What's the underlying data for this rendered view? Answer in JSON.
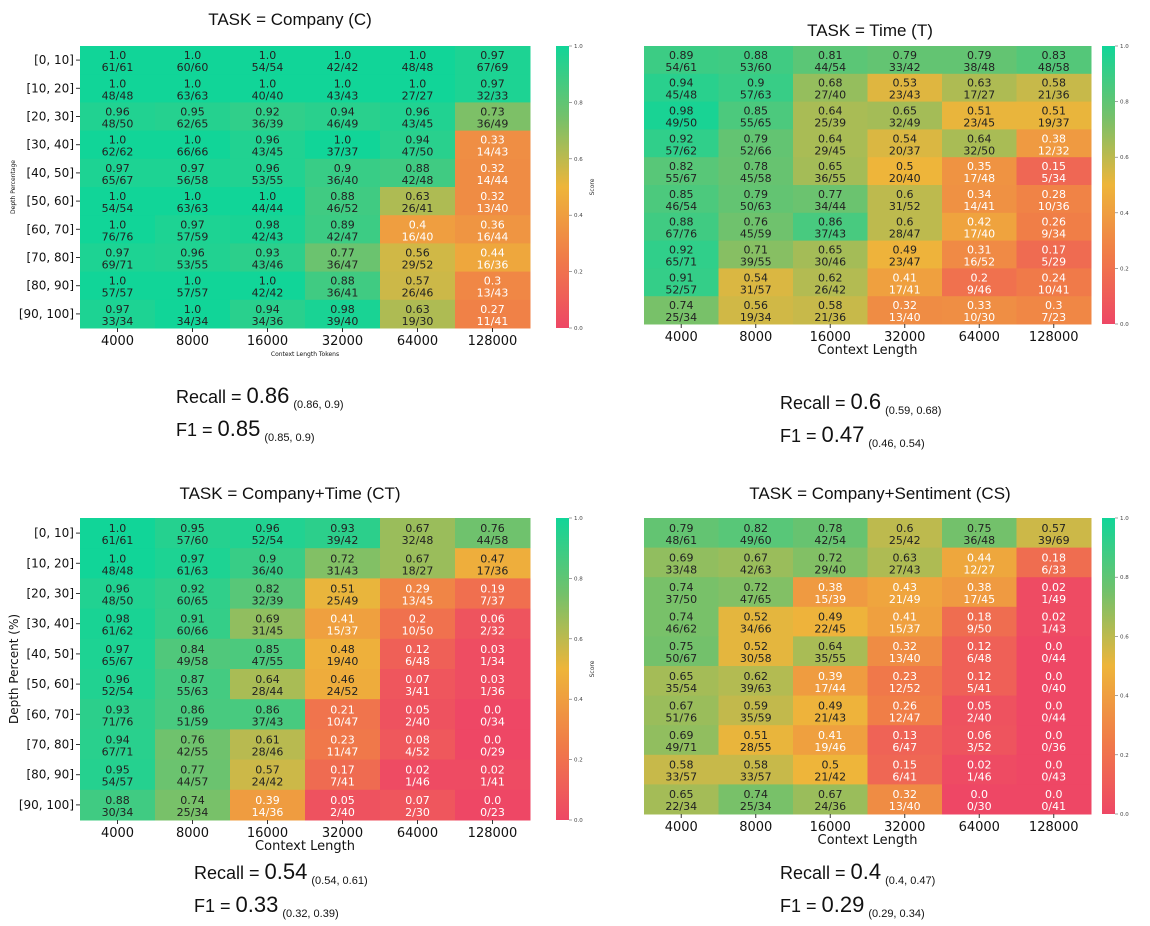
{
  "figure_title": "",
  "colorscale": {
    "stops": [
      [
        0.0,
        "#ee4765"
      ],
      [
        0.25,
        "#f07c48"
      ],
      [
        0.5,
        "#eeb53a"
      ],
      [
        0.75,
        "#73c16b"
      ],
      [
        1.0,
        "#11d598"
      ]
    ],
    "ticks": [
      "0.0",
      "0.2",
      "0.4",
      "0.6",
      "0.8",
      "1.0"
    ]
  },
  "chart_data": [
    {
      "type": "heatmap",
      "title": "TASK = Company (C)",
      "xlabel": "Context Length Tokens",
      "ylabel": "Depth Percentage",
      "colorbar_label": "Score",
      "x_ticks": [
        "4000",
        "8000",
        "16000",
        "32000",
        "64000",
        "128000"
      ],
      "y_ticks": [
        "[0, 10]",
        "[10, 20]",
        "[20, 30]",
        "[30, 40]",
        "[40, 50]",
        "[50, 60]",
        "[60, 70]",
        "[70, 80]",
        "[80, 90]",
        "[90, 100]"
      ],
      "values": [
        [
          "1.0",
          "1.0",
          "1.0",
          "1.0",
          "1.0",
          "0.97"
        ],
        [
          "1.0",
          "1.0",
          "1.0",
          "1.0",
          "1.0",
          "0.97"
        ],
        [
          "0.96",
          "0.95",
          "0.92",
          "0.94",
          "0.96",
          "0.73"
        ],
        [
          "1.0",
          "1.0",
          "0.96",
          "1.0",
          "0.94",
          "0.33"
        ],
        [
          "0.97",
          "0.97",
          "0.96",
          "0.9",
          "0.88",
          "0.32"
        ],
        [
          "1.0",
          "1.0",
          "1.0",
          "0.88",
          "0.63",
          "0.32"
        ],
        [
          "1.0",
          "0.97",
          "0.98",
          "0.89",
          "0.4",
          "0.36"
        ],
        [
          "0.97",
          "0.96",
          "0.93",
          "0.77",
          "0.56",
          "0.44"
        ],
        [
          "1.0",
          "1.0",
          "1.0",
          "0.88",
          "0.57",
          "0.3"
        ],
        [
          "0.97",
          "1.0",
          "0.94",
          "0.98",
          "0.63",
          "0.27"
        ]
      ],
      "counts": [
        [
          "61/61",
          "60/60",
          "54/54",
          "42/42",
          "48/48",
          "67/69"
        ],
        [
          "48/48",
          "63/63",
          "40/40",
          "43/43",
          "27/27",
          "32/33"
        ],
        [
          "48/50",
          "62/65",
          "36/39",
          "46/49",
          "43/45",
          "36/49"
        ],
        [
          "62/62",
          "66/66",
          "43/45",
          "37/37",
          "47/50",
          "14/43"
        ],
        [
          "65/67",
          "56/58",
          "53/55",
          "36/40",
          "42/48",
          "14/44"
        ],
        [
          "54/54",
          "63/63",
          "44/44",
          "46/52",
          "26/41",
          "13/40"
        ],
        [
          "76/76",
          "57/59",
          "42/43",
          "42/47",
          "16/40",
          "16/44"
        ],
        [
          "69/71",
          "53/55",
          "43/46",
          "36/47",
          "29/52",
          "16/36"
        ],
        [
          "57/57",
          "57/57",
          "42/42",
          "36/41",
          "26/46",
          "13/43"
        ],
        [
          "33/34",
          "34/34",
          "34/36",
          "39/40",
          "19/30",
          "11/41"
        ]
      ],
      "recall": {
        "label": "Recall = ",
        "value": "0.86",
        "ci": "(0.86, 0.9)"
      },
      "f1": {
        "label": "F1 = ",
        "value": "0.85",
        "ci": "(0.85, 0.9)"
      }
    },
    {
      "type": "heatmap",
      "title": "TASK = Time  (T)",
      "xlabel": "Context Length",
      "ylabel": "",
      "colorbar_label": "",
      "x_ticks": [
        "4000",
        "8000",
        "16000",
        "32000",
        "64000",
        "128000"
      ],
      "y_ticks": [],
      "values": [
        [
          "0.89",
          "0.88",
          "0.81",
          "0.79",
          "0.79",
          "0.83"
        ],
        [
          "0.94",
          "0.9",
          "0.68",
          "0.53",
          "0.63",
          "0.58"
        ],
        [
          "0.98",
          "0.85",
          "0.64",
          "0.65",
          "0.51",
          "0.51"
        ],
        [
          "0.92",
          "0.79",
          "0.64",
          "0.54",
          "0.64",
          "0.38"
        ],
        [
          "0.82",
          "0.78",
          "0.65",
          "0.5",
          "0.35",
          "0.15"
        ],
        [
          "0.85",
          "0.79",
          "0.77",
          "0.6",
          "0.34",
          "0.28"
        ],
        [
          "0.88",
          "0.76",
          "0.86",
          "0.6",
          "0.42",
          "0.26"
        ],
        [
          "0.92",
          "0.71",
          "0.65",
          "0.49",
          "0.31",
          "0.17"
        ],
        [
          "0.91",
          "0.54",
          "0.62",
          "0.41",
          "0.2",
          "0.24"
        ],
        [
          "0.74",
          "0.56",
          "0.58",
          "0.32",
          "0.33",
          "0.3"
        ]
      ],
      "counts": [
        [
          "54/61",
          "53/60",
          "44/54",
          "33/42",
          "38/48",
          "48/58"
        ],
        [
          "45/48",
          "57/63",
          "27/40",
          "23/43",
          "17/27",
          "21/36"
        ],
        [
          "49/50",
          "55/65",
          "25/39",
          "32/49",
          "23/45",
          "19/37"
        ],
        [
          "57/62",
          "52/66",
          "29/45",
          "20/37",
          "32/50",
          "12/32"
        ],
        [
          "55/67",
          "45/58",
          "36/55",
          "20/40",
          "17/48",
          "5/34"
        ],
        [
          "46/54",
          "50/63",
          "34/44",
          "31/52",
          "14/41",
          "10/36"
        ],
        [
          "67/76",
          "45/59",
          "37/43",
          "28/47",
          "17/40",
          "9/34"
        ],
        [
          "65/71",
          "39/55",
          "30/46",
          "23/47",
          "16/52",
          "5/29"
        ],
        [
          "52/57",
          "31/57",
          "26/42",
          "17/41",
          "9/46",
          "10/41"
        ],
        [
          "25/34",
          "19/34",
          "21/36",
          "13/40",
          "10/30",
          "7/23"
        ]
      ],
      "recall": {
        "label": "Recall = ",
        "value": "0.6",
        "ci": "(0.59, 0.68)"
      },
      "f1": {
        "label": "F1 = ",
        "value": "0.47",
        "ci": "(0.46, 0.54)"
      }
    },
    {
      "type": "heatmap",
      "title": "TASK = Company+Time (CT)",
      "xlabel": "Context Length",
      "ylabel": "Depth Percent (%)",
      "colorbar_label": "Score",
      "x_ticks": [
        "4000",
        "8000",
        "16000",
        "32000",
        "64000",
        "128000"
      ],
      "y_ticks": [
        "[0, 10]",
        "[10, 20]",
        "[20, 30]",
        "[30, 40]",
        "[40, 50]",
        "[50, 60]",
        "[60, 70]",
        "[70, 80]",
        "[80, 90]",
        "[90, 100]"
      ],
      "values": [
        [
          "1.0",
          "0.95",
          "0.96",
          "0.93",
          "0.67",
          "0.76"
        ],
        [
          "1.0",
          "0.97",
          "0.9",
          "0.72",
          "0.67",
          "0.47"
        ],
        [
          "0.96",
          "0.92",
          "0.82",
          "0.51",
          "0.29",
          "0.19"
        ],
        [
          "0.98",
          "0.91",
          "0.69",
          "0.41",
          "0.2",
          "0.06"
        ],
        [
          "0.97",
          "0.84",
          "0.85",
          "0.48",
          "0.12",
          "0.03"
        ],
        [
          "0.96",
          "0.87",
          "0.64",
          "0.46",
          "0.07",
          "0.03"
        ],
        [
          "0.93",
          "0.86",
          "0.86",
          "0.21",
          "0.05",
          "0.0"
        ],
        [
          "0.94",
          "0.76",
          "0.61",
          "0.23",
          "0.08",
          "0.0"
        ],
        [
          "0.95",
          "0.77",
          "0.57",
          "0.17",
          "0.02",
          "0.02"
        ],
        [
          "0.88",
          "0.74",
          "0.39",
          "0.05",
          "0.07",
          "0.0"
        ]
      ],
      "counts": [
        [
          "61/61",
          "57/60",
          "52/54",
          "39/42",
          "32/48",
          "44/58"
        ],
        [
          "48/48",
          "61/63",
          "36/40",
          "31/43",
          "18/27",
          "17/36"
        ],
        [
          "48/50",
          "60/65",
          "32/39",
          "25/49",
          "13/45",
          "7/37"
        ],
        [
          "61/62",
          "60/66",
          "31/45",
          "15/37",
          "10/50",
          "2/32"
        ],
        [
          "65/67",
          "49/58",
          "47/55",
          "19/40",
          "6/48",
          "1/34"
        ],
        [
          "52/54",
          "55/63",
          "28/44",
          "24/52",
          "3/41",
          "1/36"
        ],
        [
          "71/76",
          "51/59",
          "37/43",
          "10/47",
          "2/40",
          "0/34"
        ],
        [
          "67/71",
          "42/55",
          "28/46",
          "11/47",
          "4/52",
          "0/29"
        ],
        [
          "54/57",
          "44/57",
          "24/42",
          "7/41",
          "1/46",
          "1/41"
        ],
        [
          "30/34",
          "25/34",
          "14/36",
          "2/40",
          "2/30",
          "0/23"
        ]
      ],
      "recall": {
        "label": "Recall = ",
        "value": "0.54",
        "ci": "(0.54, 0.61)"
      },
      "f1": {
        "label": "F1 = ",
        "value": "0.33",
        "ci": "(0.32, 0.39)"
      }
    },
    {
      "type": "heatmap",
      "title": "TASK = Company+Sentiment (CS)",
      "xlabel": "Context Length",
      "ylabel": "",
      "colorbar_label": "",
      "x_ticks": [
        "4000",
        "8000",
        "16000",
        "32000",
        "64000",
        "128000"
      ],
      "y_ticks": [],
      "values": [
        [
          "0.79",
          "0.82",
          "0.78",
          "0.6",
          "0.75",
          "0.57"
        ],
        [
          "0.69",
          "0.67",
          "0.72",
          "0.63",
          "0.44",
          "0.18"
        ],
        [
          "0.74",
          "0.72",
          "0.38",
          "0.43",
          "0.38",
          "0.02"
        ],
        [
          "0.74",
          "0.52",
          "0.49",
          "0.41",
          "0.18",
          "0.02"
        ],
        [
          "0.75",
          "0.52",
          "0.64",
          "0.32",
          "0.12",
          "0.0"
        ],
        [
          "0.65",
          "0.62",
          "0.39",
          "0.23",
          "0.12",
          "0.0"
        ],
        [
          "0.67",
          "0.59",
          "0.49",
          "0.26",
          "0.05",
          "0.0"
        ],
        [
          "0.69",
          "0.51",
          "0.41",
          "0.13",
          "0.06",
          "0.0"
        ],
        [
          "0.58",
          "0.58",
          "0.5",
          "0.15",
          "0.02",
          "0.0"
        ],
        [
          "0.65",
          "0.74",
          "0.67",
          "0.32",
          "0.0",
          "0.0"
        ]
      ],
      "counts": [
        [
          "48/61",
          "49/60",
          "42/54",
          "25/42",
          "36/48",
          "39/69"
        ],
        [
          "33/48",
          "42/63",
          "29/40",
          "27/43",
          "12/27",
          "6/33"
        ],
        [
          "37/50",
          "47/65",
          "15/39",
          "21/49",
          "17/45",
          "1/49"
        ],
        [
          "46/62",
          "34/66",
          "22/45",
          "15/37",
          "9/50",
          "1/43"
        ],
        [
          "50/67",
          "30/58",
          "35/55",
          "13/40",
          "6/48",
          "0/44"
        ],
        [
          "35/54",
          "39/63",
          "17/44",
          "12/52",
          "5/41",
          "0/40"
        ],
        [
          "51/76",
          "35/59",
          "21/43",
          "12/47",
          "2/40",
          "0/44"
        ],
        [
          "49/71",
          "28/55",
          "19/46",
          "6/47",
          "3/52",
          "0/36"
        ],
        [
          "33/57",
          "33/57",
          "21/42",
          "6/41",
          "1/46",
          "0/43"
        ],
        [
          "22/34",
          "25/34",
          "24/36",
          "13/40",
          "0/30",
          "0/41"
        ]
      ],
      "recall": {
        "label": "Recall = ",
        "value": "0.4",
        "ci": "(0.4, 0.47)"
      },
      "f1": {
        "label": "F1 = ",
        "value": "0.29",
        "ci": "(0.29, 0.34)"
      }
    }
  ]
}
